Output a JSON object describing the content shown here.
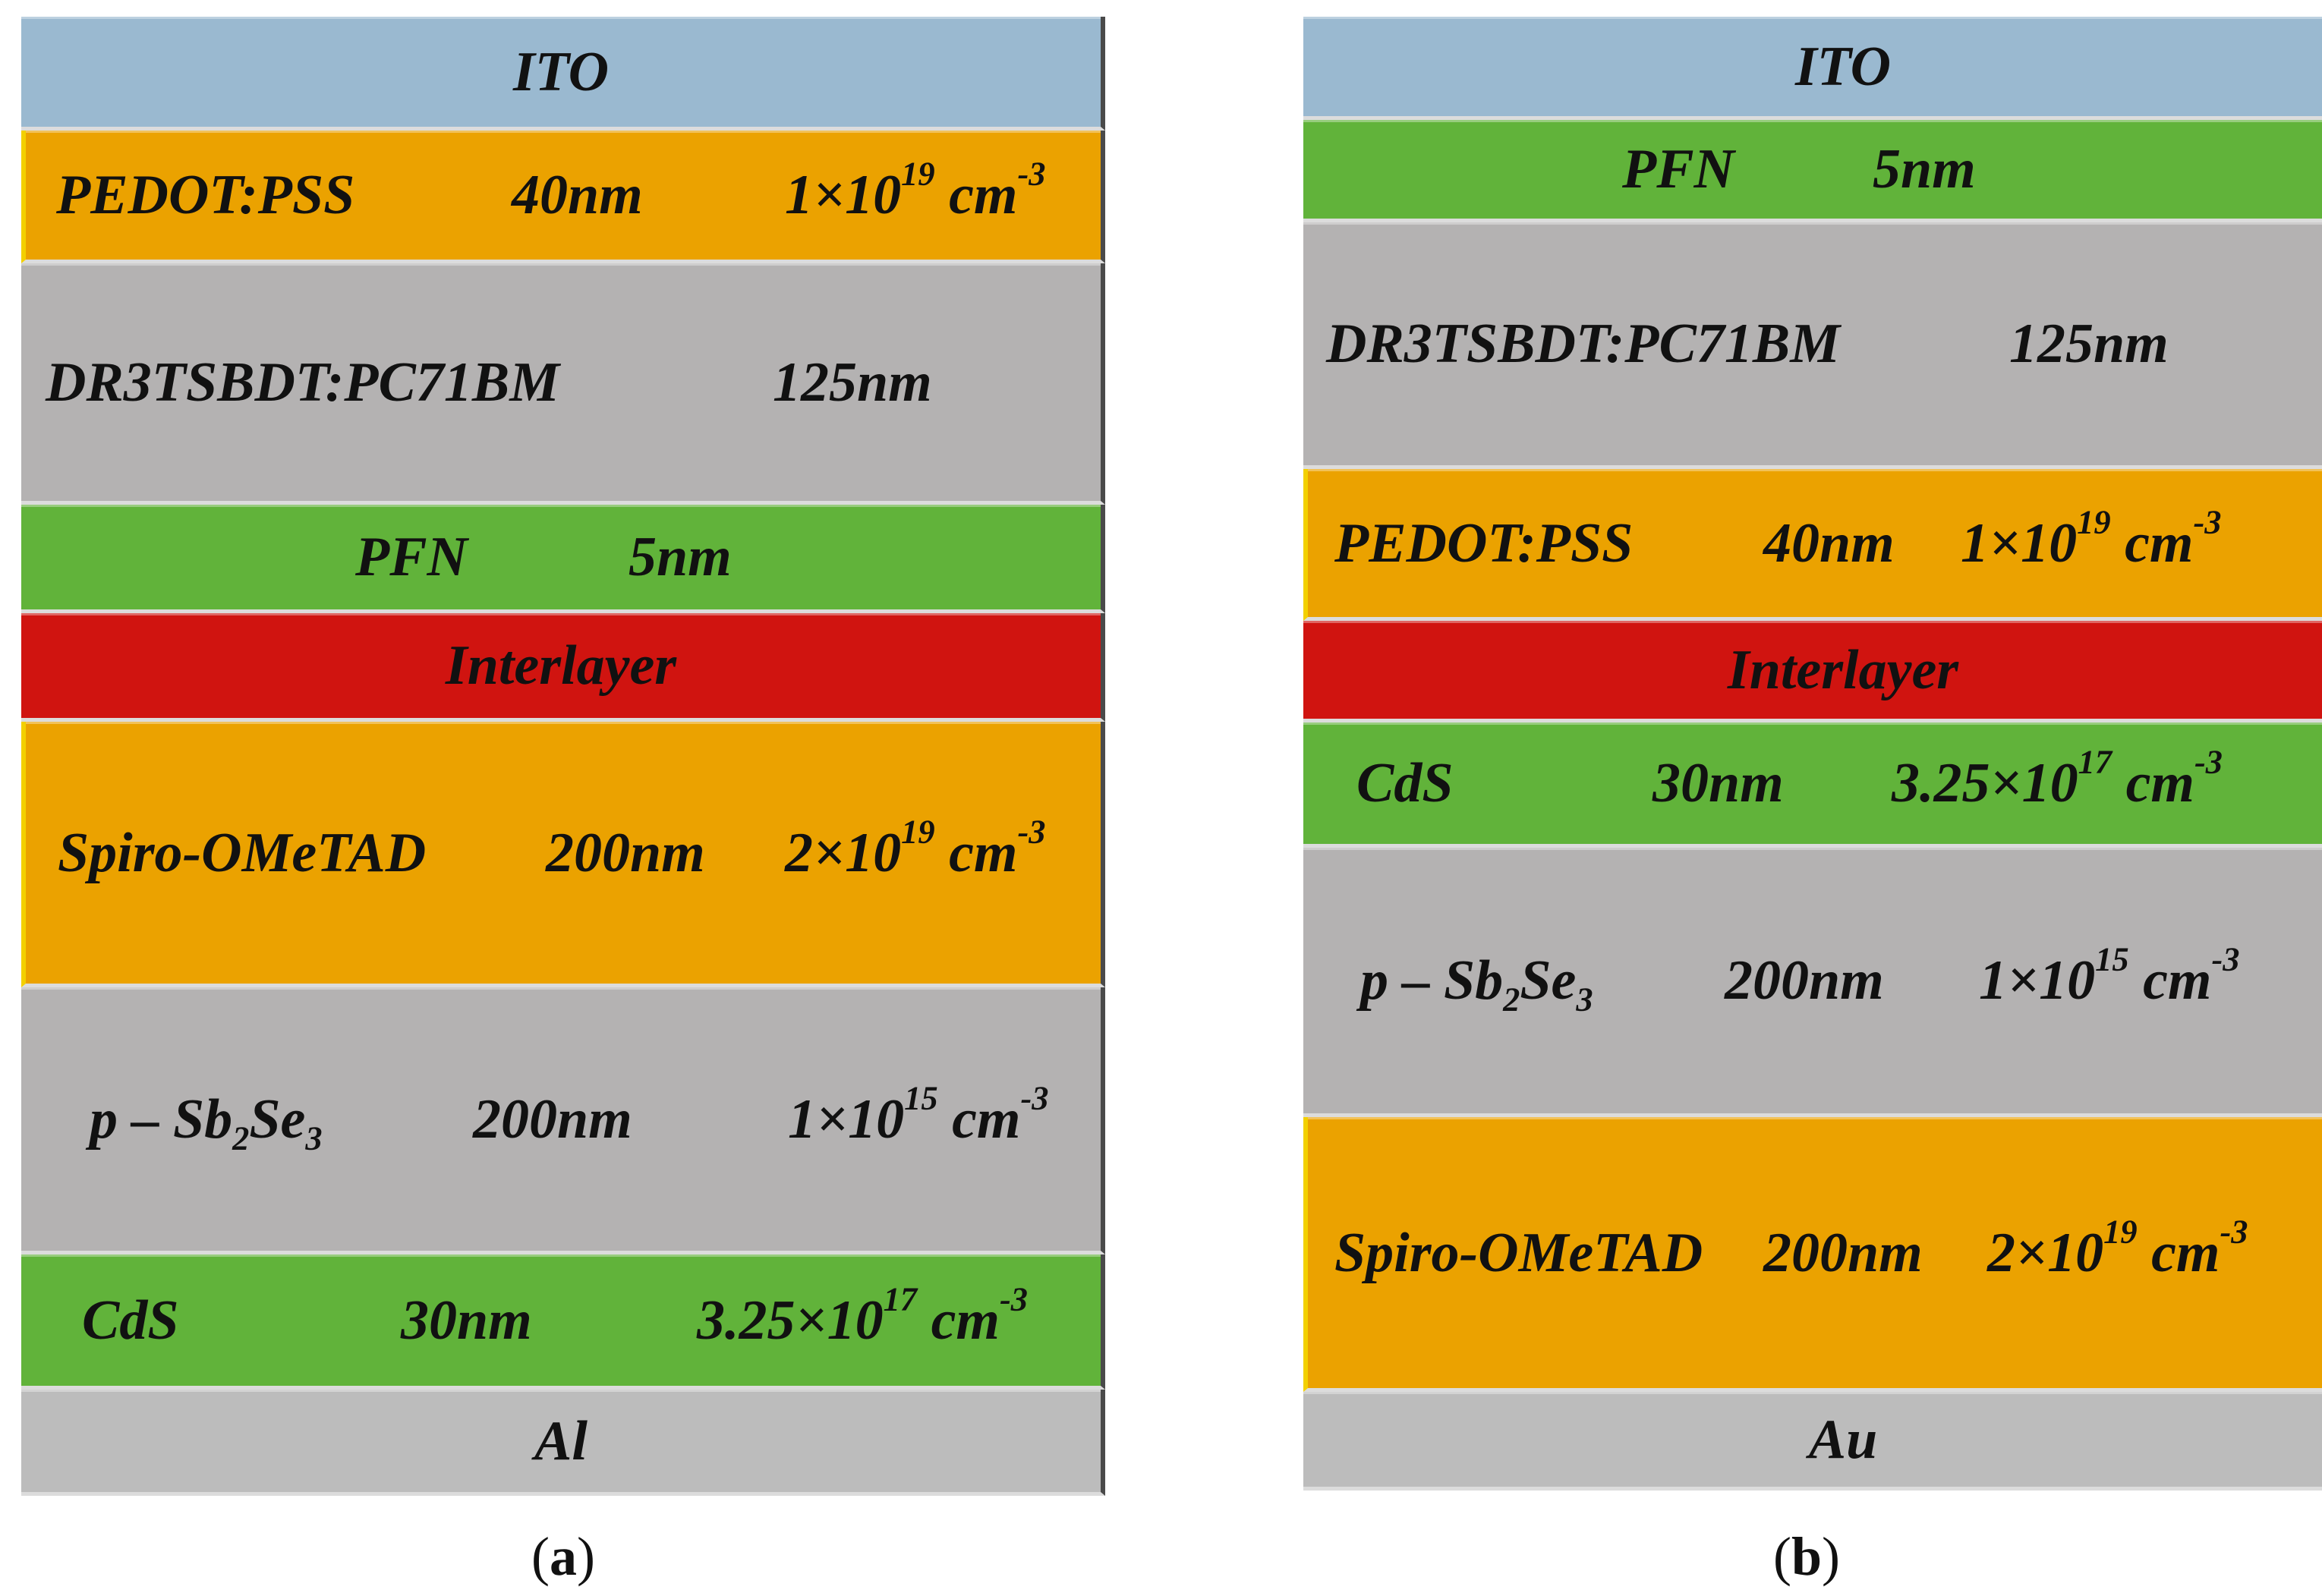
{
  "colors": {
    "ito": "#9ab9d0",
    "orange": "#eba200",
    "gray": "#b4b2b2",
    "green": "#61b33a",
    "red": "#d01410",
    "metal": "#bcbcbc"
  },
  "panel_a": {
    "caption": "a",
    "ito": "ITO",
    "pedot": {
      "name": "PEDOT:PSS",
      "thickness": "40nm",
      "coef": "1×10",
      "exp": "19",
      "unit": "cm",
      "unit_exp": "-3"
    },
    "dr3": {
      "name": "DR3TSBDT:PC71BM",
      "thickness": "125nm"
    },
    "pfn": {
      "name": "PFN",
      "thickness": "5nm"
    },
    "interlayer": "Interlayer",
    "spiro": {
      "name": "Spiro-OMeTAD",
      "thickness": "200nm",
      "coef": "2×10",
      "exp": "19",
      "unit": "cm",
      "unit_exp": "-3"
    },
    "sbse": {
      "p": "p",
      "dash": "–",
      "sb": "Sb",
      "sb_sub": "2",
      "se": "Se",
      "se_sub": "3",
      "thickness": "200nm",
      "coef": "1×10",
      "exp": "15",
      "unit": "cm",
      "unit_exp": "-3"
    },
    "cds": {
      "name": "CdS",
      "thickness": "30nm",
      "coef": "3.25×10",
      "exp": "17",
      "unit": "cm",
      "unit_exp": "-3"
    },
    "metal": "Al"
  },
  "panel_b": {
    "caption": "b",
    "ito": "ITO",
    "pfn": {
      "name": "PFN",
      "thickness": "5nm"
    },
    "dr3": {
      "name": "DR3TSBDT:PC71BM",
      "thickness": "125nm"
    },
    "pedot": {
      "name": "PEDOT:PSS",
      "thickness": "40nm",
      "coef": "1×10",
      "exp": "19",
      "unit": "cm",
      "unit_exp": "-3"
    },
    "interlayer": "Interlayer",
    "cds": {
      "name": "CdS",
      "thickness": "30nm",
      "coef": "3.25×10",
      "exp": "17",
      "unit": "cm",
      "unit_exp": "-3"
    },
    "sbse": {
      "p": "p",
      "dash": "–",
      "sb": "Sb",
      "sb_sub": "2",
      "se": "Se",
      "se_sub": "3",
      "thickness": "200nm",
      "coef": "1×10",
      "exp": "15",
      "unit": "cm",
      "unit_exp": "-3"
    },
    "spiro": {
      "name": "Spiro-OMeTAD",
      "thickness": "200nm",
      "coef": "2×10",
      "exp": "19",
      "unit": "cm",
      "unit_exp": "-3"
    },
    "metal": "Au"
  }
}
